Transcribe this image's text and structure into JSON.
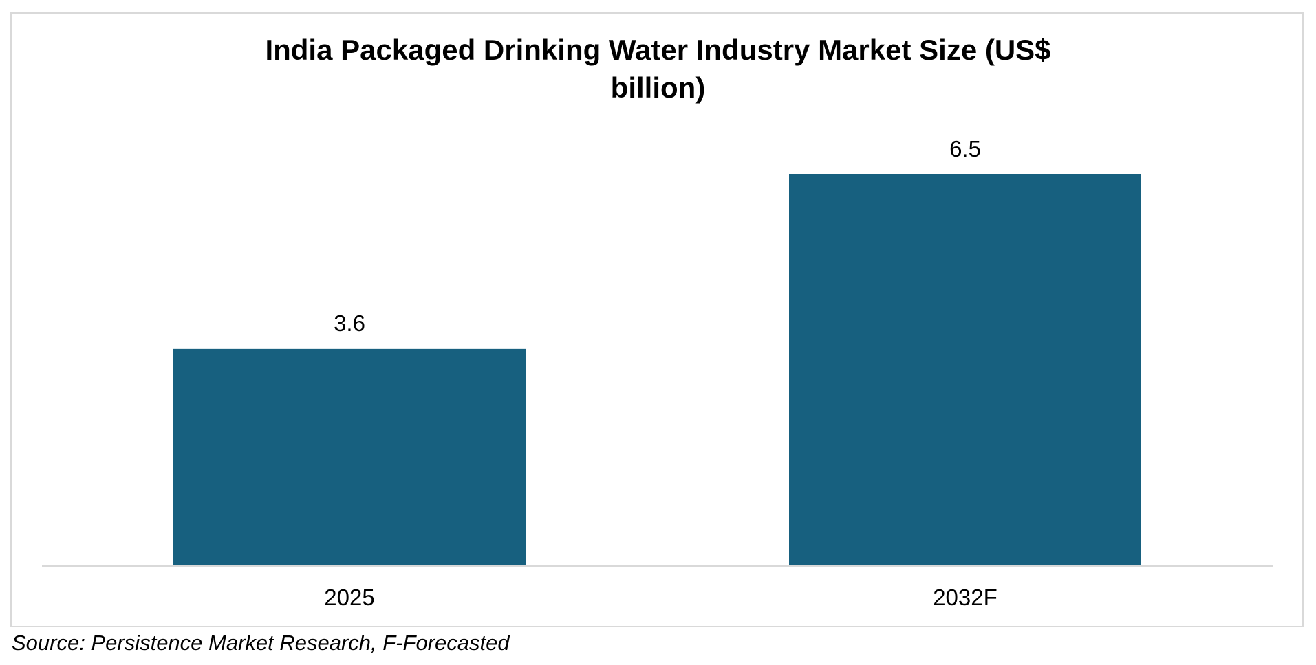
{
  "chart_data": {
    "type": "bar",
    "title_line1": "India Packaged Drinking Water Industry Market Size (US$",
    "title_line2": "billion)",
    "categories": [
      "2025",
      "2032F"
    ],
    "values": [
      3.6,
      6.5
    ],
    "data_labels": [
      "3.6",
      "6.5"
    ],
    "xlabel": "",
    "ylabel": "",
    "ylim": [
      0,
      6.5
    ],
    "grid": false,
    "legend": "none",
    "bar_color": "#17607f",
    "axis_color": "#d9d9d9"
  },
  "source": "Source: Persistence Market Research, F-Forecasted"
}
